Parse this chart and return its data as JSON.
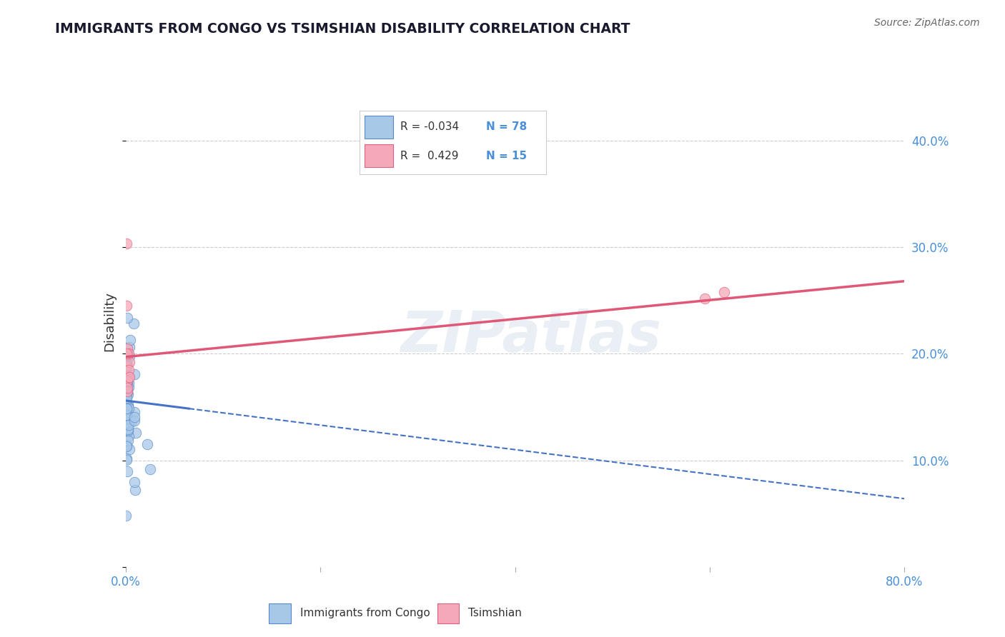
{
  "title": "IMMIGRANTS FROM CONGO VS TSIMSHIAN DISABILITY CORRELATION CHART",
  "source": "Source: ZipAtlas.com",
  "ylabel_val": "Disability",
  "xlim": [
    0.0,
    0.8
  ],
  "ylim": [
    0.0,
    0.46
  ],
  "blue_R": -0.034,
  "blue_N": 78,
  "pink_R": 0.429,
  "pink_N": 15,
  "blue_color": "#a8c8e8",
  "pink_color": "#f4a8b8",
  "blue_edge_color": "#5588cc",
  "pink_edge_color": "#e06080",
  "blue_line_color": "#4472c4",
  "pink_line_color": "#e05878",
  "watermark": "ZIPatlas",
  "grid_color": "#cccccc",
  "title_color": "#1a1a2e",
  "axis_tick_color": "#4a90d9",
  "ytick_positions": [
    0.1,
    0.2,
    0.3,
    0.4
  ],
  "ytick_labels": [
    "10.0%",
    "20.0%",
    "30.0%",
    "40.0%"
  ],
  "xtick_positions": [
    0.0,
    0.2,
    0.4,
    0.6,
    0.8
  ],
  "xtick_labels": [
    "0.0%",
    "",
    "",
    "",
    "80.0%"
  ]
}
